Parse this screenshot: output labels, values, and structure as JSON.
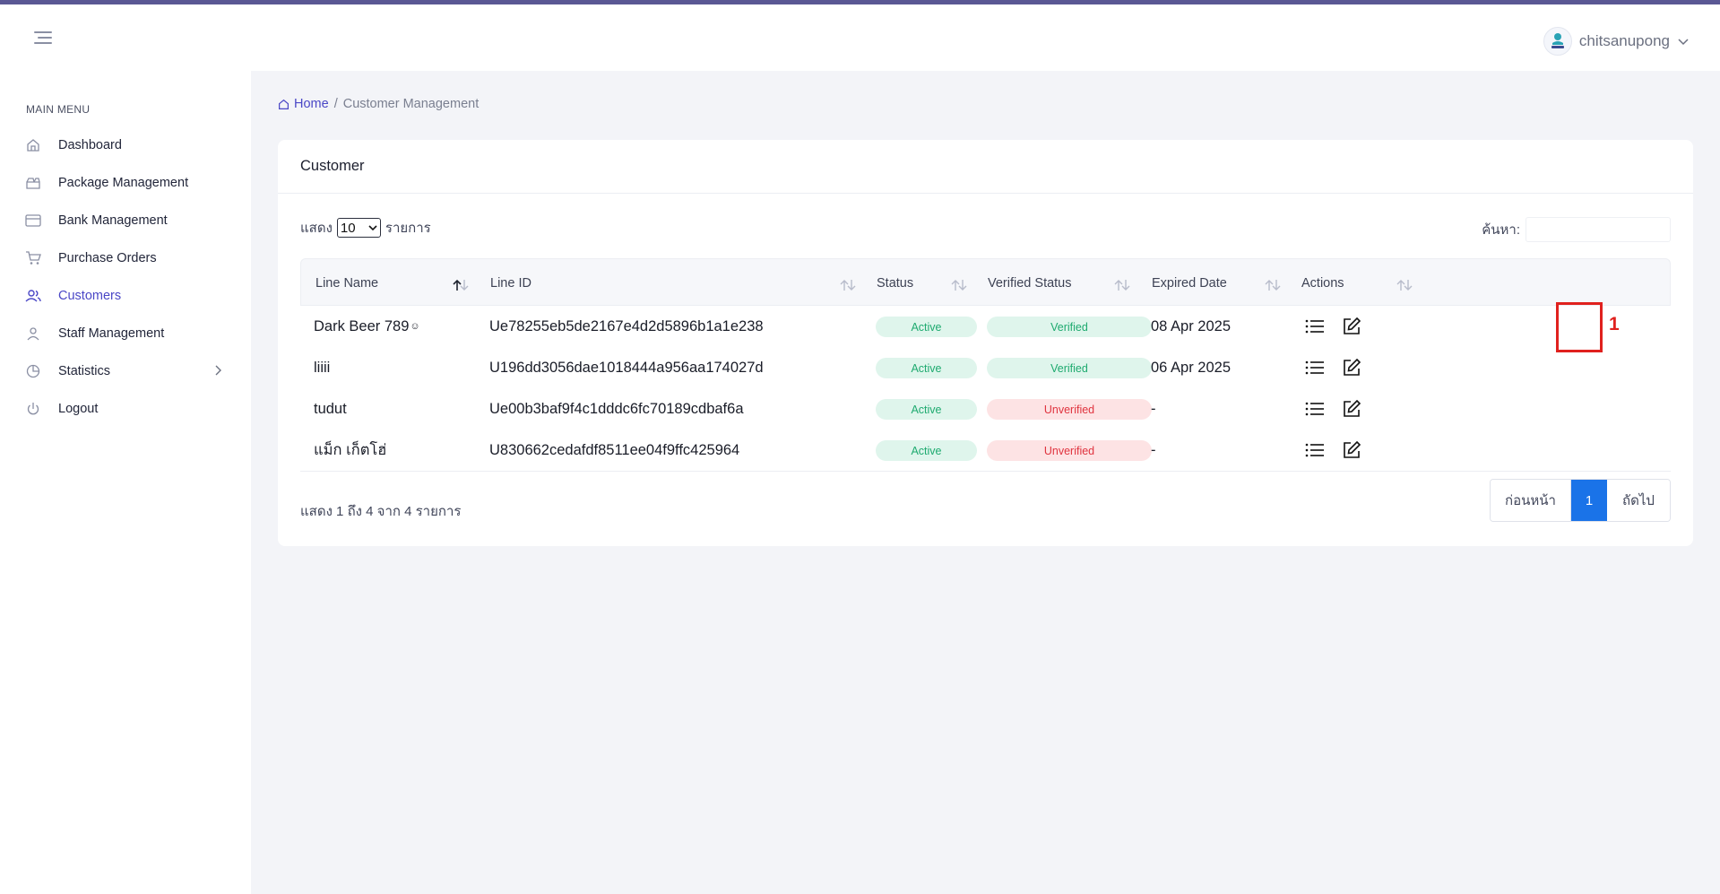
{
  "colors": {
    "accent": "#4a47c6",
    "top_stripe": "#5a5894",
    "highlight": "#e0211e",
    "page_active": "#1a73e8"
  },
  "header": {
    "username": "chitsanupong",
    "avatar_icon": "user-avatar-icon"
  },
  "sidebar": {
    "title": "MAIN MENU",
    "items": [
      {
        "label": "Dashboard",
        "icon": "home-icon"
      },
      {
        "label": "Package Management",
        "icon": "package-icon"
      },
      {
        "label": "Bank Management",
        "icon": "credit-card-icon"
      },
      {
        "label": "Purchase Orders",
        "icon": "cart-icon"
      },
      {
        "label": "Customers",
        "icon": "users-icon",
        "active": true
      },
      {
        "label": "Staff Management",
        "icon": "user-icon"
      },
      {
        "label": "Statistics",
        "icon": "pie-chart-icon",
        "has_submenu": true
      },
      {
        "label": "Logout",
        "icon": "power-icon"
      }
    ]
  },
  "breadcrumb": {
    "home": "Home",
    "separator": "/",
    "current": "Customer Management"
  },
  "card": {
    "title": "Customer",
    "length": {
      "prefix": "แสดง",
      "value": "10",
      "suffix": "รายการ"
    },
    "search": {
      "label": "ค้นหา:",
      "value": ""
    },
    "columns": [
      "Line Name",
      "Line ID",
      "Status",
      "Verified Status",
      "Expired Date",
      "Actions"
    ],
    "rows": [
      {
        "name": "Dark Beer 789",
        "line_id": "Ue78255eb5de2167e4d2d5896b1a1e238",
        "status": "Active",
        "verified": "Verified",
        "expired": "08 Apr 2025"
      },
      {
        "name": "liiii",
        "line_id": "U196dd3056dae1018444a956aa174027d",
        "status": "Active",
        "verified": "Verified",
        "expired": "06 Apr 2025"
      },
      {
        "name": "tudut",
        "line_id": "Ue00b3baf9f4c1dddc6fc70189cdbaf6a",
        "status": "Active",
        "verified": "Unverified",
        "expired": "-"
      },
      {
        "name": "แม็ก เก็ตโฮ่",
        "line_id": "U830662cedafdf8511ee04f9ffc425964",
        "status": "Active",
        "verified": "Unverified",
        "expired": "-"
      }
    ],
    "info": "แสดง 1 ถึง 4 จาก 4 รายการ",
    "pagination": {
      "prev": "ก่อนหน้า",
      "current": "1",
      "next": "ถัดไป"
    },
    "annotation": {
      "label": "1"
    }
  }
}
